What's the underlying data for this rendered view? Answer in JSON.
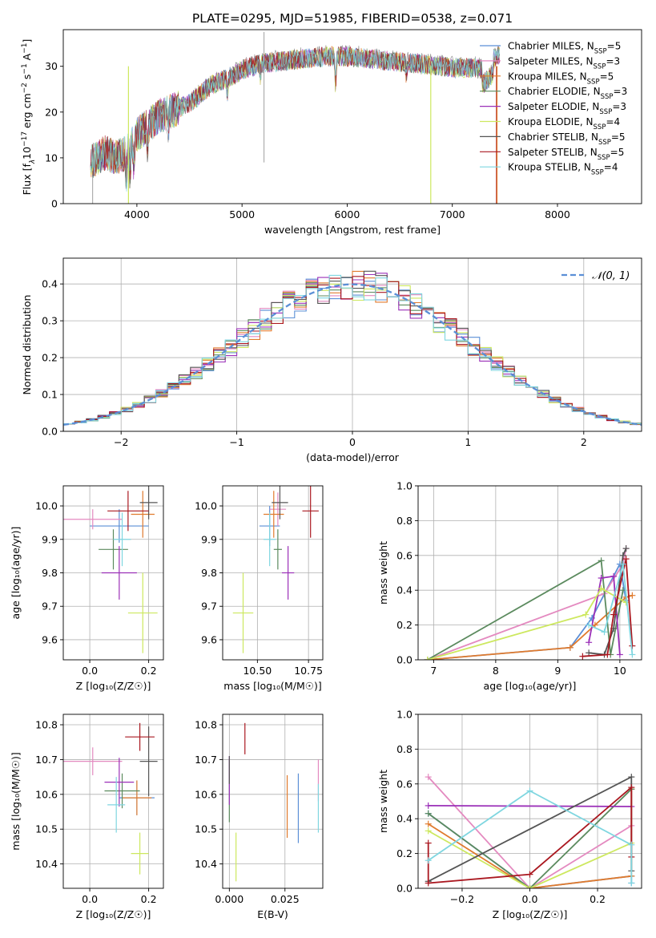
{
  "figure_title": "PLATE=0295, MJD=51985, FIBERID=0538, z=0.071",
  "chart_data": [
    {
      "id": "spectrum",
      "type": "line",
      "xlabel": "wavelength [Angstrom, rest frame]",
      "ylabel_parts": [
        "Flux [f",
        "λ",
        "10",
        "−17",
        " erg cm",
        "−2",
        " s",
        "−1",
        " A",
        "−1",
        "]"
      ],
      "xlim": [
        3300,
        8800
      ],
      "ylim": [
        0,
        38
      ],
      "xticks": [
        4000,
        5000,
        6000,
        7000,
        8000
      ],
      "yticks": [
        0,
        10,
        20,
        30
      ],
      "legend_position": "right",
      "continuum": {
        "x": [
          3560,
          3700,
          3800,
          3900,
          4000,
          4100,
          4200,
          4300,
          4400,
          4500,
          4600,
          4700,
          4800,
          4900,
          5000,
          5200,
          5400,
          5600,
          5800,
          6000,
          6200,
          6400,
          6600,
          6800,
          7000,
          7200,
          7300,
          7400,
          7450
        ],
        "y": [
          9,
          11,
          10,
          11,
          15,
          17,
          19,
          20,
          21,
          22,
          24,
          26,
          27,
          28,
          29.5,
          31,
          31.5,
          32,
          32.5,
          32.5,
          32,
          31.5,
          31,
          30.5,
          30,
          30,
          29.5,
          32,
          33
        ]
      },
      "series": [
        {
          "name": "Chabrier MILES",
          "nssp": "5",
          "color": "#5b8fd6"
        },
        {
          "name": "Salpeter MILES",
          "nssp": "3",
          "color": "#e48ac0"
        },
        {
          "name": "Kroupa MILES",
          "nssp": "5",
          "color": "#e07b2e"
        },
        {
          "name": "Chabrier ELODIE",
          "nssp": "3",
          "color": "#5b8a5e"
        },
        {
          "name": "Salpeter ELODIE",
          "nssp": "3",
          "color": "#9b30b8"
        },
        {
          "name": "Kroupa ELODIE",
          "nssp": "4",
          "color": "#cde85f"
        },
        {
          "name": "Chabrier STELIB",
          "nssp": "5",
          "color": "#555555"
        },
        {
          "name": "Salpeter STELIB",
          "nssp": "5",
          "color": "#aa1820"
        },
        {
          "name": "Kroupa STELIB",
          "nssp": "4",
          "color": "#7fd6e0"
        }
      ]
    },
    {
      "id": "residuals",
      "type": "line",
      "xlabel": "(data-model)/error",
      "ylabel": "Normed distribution",
      "xlim": [
        -2.5,
        2.5
      ],
      "ylim": [
        0,
        0.47
      ],
      "xticks": [
        -2,
        -1,
        0,
        1,
        2
      ],
      "yticks": [
        0.0,
        0.1,
        0.2,
        0.3,
        0.4
      ],
      "grid": true,
      "legend_label": "𝒩(0, 1)",
      "legend_position": "top-right",
      "bin_width": 0.1
    },
    {
      "id": "age-z",
      "type": "scatter",
      "xlabel": "Z [log₁₀(Z/Z☉)]",
      "ylabel": "age  [log₁₀(age/yr)]",
      "xlim": [
        -0.09,
        0.25
      ],
      "ylim": [
        9.54,
        10.06
      ],
      "xticks": [
        0.0,
        0.2
      ],
      "yticks": [
        9.6,
        9.7,
        9.8,
        9.9,
        10.0
      ],
      "grid": true,
      "points": [
        {
          "s": 0,
          "x": 0.1,
          "y": 9.94,
          "ex": 0.1,
          "ey": 0.05
        },
        {
          "s": 1,
          "x": 0.01,
          "y": 9.96,
          "ex": 0.1,
          "ey": 0.03
        },
        {
          "s": 2,
          "x": 0.18,
          "y": 9.975,
          "ex": 0.04,
          "ey": 0.07
        },
        {
          "s": 3,
          "x": 0.08,
          "y": 9.87,
          "ex": 0.05,
          "ey": 0.06
        },
        {
          "s": 4,
          "x": 0.1,
          "y": 9.8,
          "ex": 0.06,
          "ey": 0.08
        },
        {
          "s": 5,
          "x": 0.18,
          "y": 9.68,
          "ex": 0.05,
          "ey": 0.12
        },
        {
          "s": 6,
          "x": 0.2,
          "y": 10.01,
          "ex": 0.03,
          "ey": 0.05
        },
        {
          "s": 7,
          "x": 0.13,
          "y": 9.985,
          "ex": 0.07,
          "ey": 0.06
        },
        {
          "s": 8,
          "x": 0.11,
          "y": 9.9,
          "ex": 0.03,
          "ey": 0.08
        }
      ]
    },
    {
      "id": "age-mass",
      "type": "scatter",
      "xlabel": "mass [log₁₀(M/M☉)]",
      "xlim": [
        10.33,
        10.82
      ],
      "ylim": [
        9.54,
        10.06
      ],
      "xticks": [
        10.5,
        10.75
      ],
      "yticks": [
        9.6,
        9.7,
        9.8,
        9.9,
        10.0
      ],
      "grid": true,
      "points": [
        {
          "s": 0,
          "x": 10.56,
          "y": 9.94,
          "ex": 0.05,
          "ey": 0.06
        },
        {
          "s": 1,
          "x": 10.6,
          "y": 9.99,
          "ex": 0.04,
          "ey": 0.05
        },
        {
          "s": 2,
          "x": 10.58,
          "y": 9.975,
          "ex": 0.05,
          "ey": 0.07
        },
        {
          "s": 3,
          "x": 10.6,
          "y": 9.87,
          "ex": 0.02,
          "ey": 0.06
        },
        {
          "s": 4,
          "x": 10.65,
          "y": 9.8,
          "ex": 0.03,
          "ey": 0.08
        },
        {
          "s": 5,
          "x": 10.43,
          "y": 9.68,
          "ex": 0.05,
          "ey": 0.12
        },
        {
          "s": 6,
          "x": 10.61,
          "y": 10.01,
          "ex": 0.04,
          "ey": 0.05
        },
        {
          "s": 7,
          "x": 10.76,
          "y": 9.985,
          "ex": 0.04,
          "ey": 0.08
        },
        {
          "s": 8,
          "x": 10.56,
          "y": 9.9,
          "ex": 0.03,
          "ey": 0.08
        }
      ]
    },
    {
      "id": "weight-age",
      "type": "line",
      "xlabel": "age  [log₁₀(age/yr)]",
      "ylabel": "mass weight",
      "xlim": [
        6.75,
        10.35
      ],
      "ylim": [
        0,
        1.0
      ],
      "xticks": [
        7,
        8,
        9,
        10
      ],
      "yticks": [
        0.0,
        0.2,
        0.4,
        0.6,
        0.8,
        1.0
      ],
      "grid": true,
      "series": [
        {
          "s": 0,
          "x": [
            6.9,
            9.2,
            9.55,
            10.0,
            10.1
          ],
          "y": [
            0.0,
            0.07,
            0.24,
            0.55,
            0.34
          ]
        },
        {
          "s": 1,
          "x": [
            6.9,
            9.75,
            10.05,
            10.1
          ],
          "y": [
            0.0,
            0.38,
            0.55,
            0.64
          ]
        },
        {
          "s": 2,
          "x": [
            6.9,
            9.2,
            9.6,
            10.1,
            10.2
          ],
          "y": [
            0.0,
            0.07,
            0.2,
            0.36,
            0.37
          ]
        },
        {
          "s": 3,
          "x": [
            6.9,
            9.7,
            9.85,
            10.05
          ],
          "y": [
            0.0,
            0.57,
            0.03,
            0.4
          ]
        },
        {
          "s": 4,
          "x": [
            9.5,
            9.7,
            9.9,
            10.0
          ],
          "y": [
            0.1,
            0.47,
            0.48,
            0.03
          ]
        },
        {
          "s": 5,
          "x": [
            6.9,
            9.45,
            9.7,
            10.1
          ],
          "y": [
            0.0,
            0.26,
            0.41,
            0.33
          ]
        },
        {
          "s": 6,
          "x": [
            9.5,
            9.75,
            9.9,
            10.05,
            10.1
          ],
          "y": [
            0.04,
            0.03,
            0.18,
            0.6,
            0.64
          ]
        },
        {
          "s": 7,
          "x": [
            9.4,
            9.8,
            9.9,
            10.1,
            10.2
          ],
          "y": [
            0.02,
            0.03,
            0.26,
            0.58,
            0.08
          ]
        },
        {
          "s": 8,
          "x": [
            9.5,
            9.75,
            10.05,
            10.2
          ],
          "y": [
            0.2,
            0.16,
            0.55,
            0.03
          ]
        }
      ]
    },
    {
      "id": "mass-z",
      "type": "scatter",
      "xlabel": "Z [log₁₀(Z/Z☉)]",
      "ylabel": "mass [log₁₀(M/M☉)]",
      "xlim": [
        -0.09,
        0.25
      ],
      "ylim": [
        10.33,
        10.83
      ],
      "xticks": [
        0.0,
        0.2
      ],
      "yticks": [
        10.4,
        10.5,
        10.6,
        10.7,
        10.8
      ],
      "grid": true,
      "points": [
        {
          "s": 0,
          "x": 0.16,
          "y": 10.59,
          "ex": 0.06,
          "ey": 0.05
        },
        {
          "s": 1,
          "x": 0.01,
          "y": 10.695,
          "ex": 0.1,
          "ey": 0.04
        },
        {
          "s": 2,
          "x": 0.16,
          "y": 10.59,
          "ex": 0.05,
          "ey": 0.05
        },
        {
          "s": 3,
          "x": 0.11,
          "y": 10.61,
          "ex": 0.06,
          "ey": 0.05
        },
        {
          "s": 4,
          "x": 0.1,
          "y": 10.635,
          "ex": 0.05,
          "ey": 0.07
        },
        {
          "s": 5,
          "x": 0.17,
          "y": 10.43,
          "ex": 0.03,
          "ey": 0.06
        },
        {
          "s": 6,
          "x": 0.2,
          "y": 10.695,
          "ex": 0.03,
          "ey": 0.1
        },
        {
          "s": 7,
          "x": 0.17,
          "y": 10.765,
          "ex": 0.05,
          "ey": 0.04
        },
        {
          "s": 8,
          "x": 0.09,
          "y": 10.57,
          "ex": 0.03,
          "ey": 0.08
        }
      ]
    },
    {
      "id": "mass-ebv",
      "type": "scatter",
      "xlabel": "E(B-V)",
      "xlim": [
        -0.003,
        0.042
      ],
      "ylim": [
        10.33,
        10.83
      ],
      "xticks": [
        0.0,
        0.025
      ],
      "yticks": [
        10.4,
        10.5,
        10.6,
        10.7,
        10.8
      ],
      "grid": true,
      "points": [
        {
          "s": 0,
          "x": 0.031,
          "y": 10.56,
          "ex": 0,
          "ey": 0.1
        },
        {
          "s": 1,
          "x": 0.04,
          "y": 10.64,
          "ex": 0,
          "ey": 0.06
        },
        {
          "s": 2,
          "x": 0.026,
          "y": 10.565,
          "ex": 0,
          "ey": 0.09
        },
        {
          "s": 3,
          "x": 0.0,
          "y": 10.61,
          "ex": 0,
          "ey": 0.09
        },
        {
          "s": 4,
          "x": 0.0,
          "y": 10.64,
          "ex": 0,
          "ey": 0.07
        },
        {
          "s": 5,
          "x": 0.003,
          "y": 10.42,
          "ex": 0,
          "ey": 0.07
        },
        {
          "s": 6,
          "x": 0.0,
          "y": 10.67,
          "ex": 0,
          "ey": 0.04
        },
        {
          "s": 7,
          "x": 0.007,
          "y": 10.76,
          "ex": 0,
          "ey": 0.045
        },
        {
          "s": 8,
          "x": 0.04,
          "y": 10.56,
          "ex": 0,
          "ey": 0.07
        }
      ]
    },
    {
      "id": "weight-z",
      "type": "line",
      "xlabel": "Z [log₁₀(Z/Z☉)]",
      "ylabel": "mass weight",
      "xlim": [
        -0.33,
        0.33
      ],
      "ylim": [
        0,
        1.0
      ],
      "xticks": [
        -0.2,
        0.0,
        0.2
      ],
      "yticks": [
        0.0,
        0.2,
        0.4,
        0.6,
        0.8,
        1.0
      ],
      "grid": true,
      "series": [
        {
          "s": 0,
          "x": [
            -0.3,
            0.0,
            0.3,
            0.3
          ],
          "y": [
            0.43,
            0.0,
            0.07,
            0.03
          ]
        },
        {
          "s": 1,
          "x": [
            -0.3,
            0.0,
            0.3
          ],
          "y": [
            0.64,
            0.0,
            0.36
          ]
        },
        {
          "s": 2,
          "x": [
            -0.3,
            0.0,
            0.3,
            0.3
          ],
          "y": [
            0.37,
            0.0,
            0.07,
            0.57
          ]
        },
        {
          "s": 3,
          "x": [
            -0.3,
            0.0,
            0.3
          ],
          "y": [
            0.43,
            0.0,
            0.57
          ]
        },
        {
          "s": 4,
          "x": [
            -0.3,
            0.3
          ],
          "y": [
            0.475,
            0.47
          ]
        },
        {
          "s": 5,
          "x": [
            -0.3,
            0.0,
            0.3
          ],
          "y": [
            0.33,
            0.0,
            0.26
          ]
        },
        {
          "s": 6,
          "x": [
            -0.3,
            0.3,
            0.3
          ],
          "y": [
            0.04,
            0.64,
            0.1
          ]
        },
        {
          "s": 7,
          "x": [
            -0.3,
            -0.3,
            0.0,
            0.3,
            0.3
          ],
          "y": [
            0.26,
            0.03,
            0.08,
            0.58,
            0.18
          ]
        },
        {
          "s": 8,
          "x": [
            -0.3,
            0.0,
            0.3,
            0.3
          ],
          "y": [
            0.16,
            0.56,
            0.25,
            0.03
          ]
        }
      ]
    }
  ]
}
